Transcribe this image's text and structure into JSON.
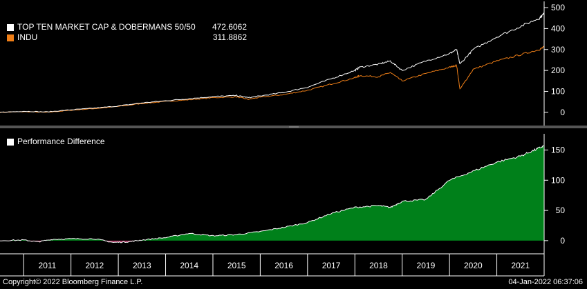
{
  "chart_data": [
    {
      "type": "line",
      "panel": "top",
      "ylim": [
        -50,
        510
      ],
      "yticks": [
        0,
        100,
        200,
        300,
        400,
        500
      ],
      "grid": false,
      "legend_placement": "top-left",
      "x": [
        2010.5,
        2011.0,
        2011.5,
        2012.0,
        2012.5,
        2013.0,
        2013.5,
        2014.0,
        2014.5,
        2015.0,
        2015.5,
        2015.75,
        2016.0,
        2016.5,
        2017.0,
        2017.5,
        2018.0,
        2018.1,
        2018.5,
        2018.75,
        2019.0,
        2019.5,
        2020.0,
        2020.15,
        2020.22,
        2020.5,
        2021.0,
        2021.5,
        2021.9,
        2022.0
      ],
      "series": [
        {
          "name": "TOP TEN MARKET CAP & DOBERMANS 50/50",
          "last_value": "472.6062",
          "color": "#ffffff",
          "values": [
            0,
            5,
            2,
            12,
            20,
            30,
            45,
            55,
            65,
            75,
            80,
            70,
            78,
            95,
            120,
            160,
            200,
            215,
            230,
            245,
            200,
            245,
            280,
            300,
            230,
            300,
            360,
            410,
            450,
            472.6
          ]
        },
        {
          "name": "INDU",
          "last_value": "311.8862",
          "color": "#f07f17",
          "values": [
            0,
            3,
            0,
            10,
            18,
            28,
            42,
            52,
            60,
            70,
            74,
            62,
            72,
            85,
            105,
            135,
            165,
            175,
            170,
            190,
            150,
            185,
            215,
            225,
            110,
            205,
            245,
            275,
            300,
            311.9
          ]
        }
      ]
    },
    {
      "type": "area",
      "panel": "bottom",
      "ylim": [
        -15,
        170
      ],
      "yticks": [
        0,
        50,
        100,
        150
      ],
      "grid": false,
      "legend_placement": "top-left",
      "x": [
        2010.5,
        2011.0,
        2011.3,
        2011.6,
        2012.0,
        2012.5,
        2012.9,
        2013.2,
        2013.5,
        2014.0,
        2014.5,
        2015.0,
        2015.5,
        2016.0,
        2016.5,
        2017.0,
        2017.5,
        2018.0,
        2018.5,
        2018.75,
        2019.0,
        2019.5,
        2020.0,
        2020.5,
        2021.0,
        2021.5,
        2021.8,
        2022.0
      ],
      "series": [
        {
          "name": "Performance Difference",
          "color": "#ffffff",
          "fill_positive": "#00801a",
          "fill_negative": "#a0305a",
          "values": [
            0,
            1,
            -2,
            2,
            3,
            3,
            -3,
            -2,
            1,
            5,
            12,
            8,
            10,
            15,
            22,
            30,
            45,
            55,
            58,
            55,
            65,
            68,
            100,
            115,
            130,
            140,
            150,
            157
          ]
        }
      ]
    }
  ],
  "x_axis": {
    "labels": [
      "2011",
      "2012",
      "2013",
      "2014",
      "2015",
      "2016",
      "2017",
      "2018",
      "2019",
      "2020",
      "2021"
    ],
    "start": 2010.5,
    "end": 2022.0
  },
  "legend_top": {
    "rows": [
      {
        "name": "TOP TEN MARKET CAP & DOBERMANS 50/50",
        "value": "472.6062",
        "color": "#ffffff"
      },
      {
        "name": "INDU",
        "value": "311.8862",
        "color": "#f07f17"
      }
    ]
  },
  "legend_bottom": {
    "name": "Performance Difference",
    "color": "#ffffff"
  },
  "footer": {
    "copyright": "Copyright© 2022 Bloomberg Finance L.P.",
    "timestamp": "04-Jan-2022 06:37:06"
  }
}
